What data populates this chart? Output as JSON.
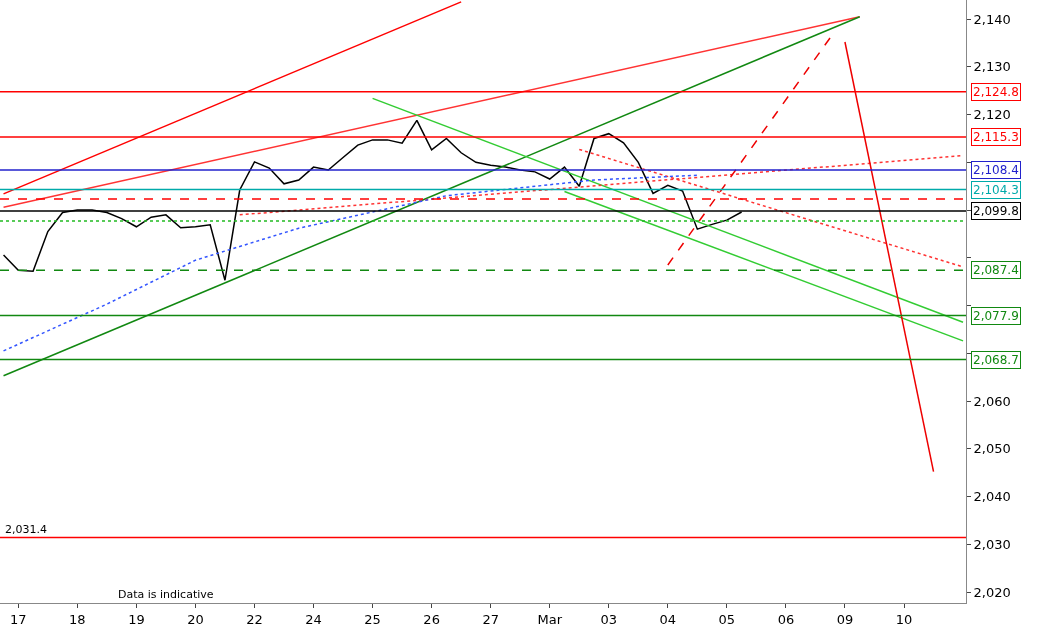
{
  "chart_data": {
    "type": "line",
    "annotations": [
      "Data is indicative"
    ],
    "categories": [
      null,
      "17",
      null,
      null,
      null,
      "18",
      null,
      null,
      null,
      "19",
      null,
      null,
      null,
      "20",
      null,
      null,
      null,
      "22",
      null,
      null,
      null,
      "24",
      null,
      null,
      null,
      "25",
      null,
      null,
      null,
      "26",
      null,
      null,
      null,
      "27",
      null,
      null,
      null,
      "Mar",
      null,
      null,
      null,
      "03",
      null,
      null,
      null,
      "04",
      null,
      null,
      null,
      "05",
      null,
      null,
      null,
      "06",
      null,
      null,
      null,
      "09",
      null,
      null,
      null,
      "10",
      null,
      null,
      null,
      null
    ],
    "ylim": [
      2017.7,
      2144
    ],
    "yticks": [
      {
        "value": 2020,
        "label": "2,020"
      },
      {
        "value": 2030,
        "label": "2,030"
      },
      {
        "value": 2040,
        "label": "2,040"
      },
      {
        "value": 2050,
        "label": "2,050"
      },
      {
        "value": 2060,
        "label": "2,060"
      },
      {
        "value": 2070,
        "label": null
      },
      {
        "value": 2080,
        "label": null
      },
      {
        "value": 2090,
        "label": null
      },
      {
        "value": 2100,
        "label": null
      },
      {
        "value": 2110,
        "label": null
      },
      {
        "value": 2120,
        "label": "2,120"
      },
      {
        "value": 2130,
        "label": "2,130"
      },
      {
        "value": 2140,
        "label": "2,140"
      }
    ],
    "grid": false,
    "marker": "none",
    "series": [
      {
        "color": "#000000",
        "values": [
          2090.6,
          2087.4,
          2087.2,
          2095.5,
          2099.5,
          2100,
          2100,
          2099.5,
          2098.2,
          2096.5,
          2098.5,
          2099,
          2096.3,
          2096.5,
          2096.9,
          2085.3,
          2104.2,
          2110.1,
          2108.8,
          2105.5,
          2106.3,
          2109,
          2108.4,
          2111,
          2113.6,
          2114.7,
          2114.7,
          2114,
          2118.8,
          2112.6,
          2115,
          2112,
          2110,
          2109.4,
          2109,
          2108.4,
          2108,
          2106.5,
          2109,
          2105,
          2115,
          2116,
          2114.1,
          2110,
          2103.5,
          2105.2,
          2104,
          2096,
          2097,
          2097.9,
          2099.6,
          null,
          null,
          null,
          null,
          null,
          null,
          null,
          null,
          null,
          null,
          null,
          null,
          null,
          null,
          null
        ]
      },
      {
        "color": "#ff0000",
        "values": [
          2103.4,
          null,
          null,
          null,
          null,
          null,
          null,
          null,
          null,
          null,
          null,
          null,
          null,
          null,
          null,
          null,
          null,
          null,
          null,
          null,
          null,
          null,
          null,
          null,
          null,
          null,
          null,
          null,
          null,
          null,
          null,
          2143.6,
          null,
          null,
          null,
          null,
          null,
          null,
          null,
          null,
          null,
          null,
          null,
          null,
          null,
          null,
          null,
          null,
          null,
          null,
          null,
          null,
          null,
          null,
          null,
          null,
          null,
          null,
          null,
          null,
          null,
          null,
          null,
          null,
          null,
          null
        ]
      },
      {
        "color": "#ff3333",
        "values": [
          2100.6,
          null,
          null,
          null,
          null,
          null,
          null,
          null,
          null,
          null,
          null,
          null,
          null,
          null,
          null,
          null,
          null,
          null,
          null,
          null,
          null,
          null,
          null,
          null,
          null,
          null,
          null,
          null,
          null,
          null,
          null,
          null,
          null,
          null,
          null,
          null,
          null,
          null,
          null,
          null,
          null,
          null,
          null,
          null,
          null,
          null,
          null,
          null,
          null,
          null,
          null,
          null,
          null,
          null,
          null,
          null,
          null,
          null,
          2140.5,
          null,
          null,
          null,
          null,
          null,
          null,
          null
        ]
      },
      {
        "color": "#118811",
        "values": [
          2065.3,
          null,
          null,
          null,
          null,
          null,
          null,
          null,
          null,
          null,
          null,
          null,
          null,
          null,
          null,
          null,
          null,
          null,
          null,
          null,
          null,
          null,
          null,
          null,
          null,
          null,
          null,
          null,
          null,
          null,
          null,
          null,
          null,
          null,
          null,
          null,
          null,
          null,
          null,
          null,
          null,
          null,
          null,
          null,
          null,
          null,
          null,
          null,
          null,
          null,
          null,
          null,
          null,
          null,
          null,
          null,
          null,
          null,
          2140.5,
          null,
          null,
          null,
          null,
          null,
          null,
          null
        ]
      },
      {
        "color": "#33cc33",
        "values": [
          null,
          null,
          null,
          null,
          null,
          null,
          null,
          null,
          null,
          null,
          null,
          null,
          null,
          null,
          null,
          null,
          null,
          null,
          null,
          null,
          null,
          null,
          null,
          null,
          null,
          2123.4,
          null,
          null,
          null,
          null,
          null,
          null,
          null,
          null,
          null,
          null,
          null,
          null,
          null,
          null,
          null,
          null,
          null,
          null,
          null,
          null,
          null,
          null,
          null,
          null,
          null,
          null,
          null,
          null,
          null,
          null,
          null,
          null,
          null,
          null,
          null,
          null,
          null,
          null,
          null,
          2076.5
        ]
      },
      {
        "color": "#33cc33",
        "values": [
          null,
          null,
          null,
          null,
          null,
          null,
          null,
          null,
          null,
          null,
          null,
          null,
          null,
          null,
          null,
          null,
          null,
          null,
          null,
          null,
          null,
          null,
          null,
          null,
          null,
          null,
          null,
          null,
          null,
          null,
          null,
          null,
          null,
          null,
          null,
          null,
          null,
          null,
          2103.9,
          null,
          null,
          null,
          null,
          null,
          null,
          null,
          null,
          null,
          null,
          null,
          null,
          null,
          null,
          null,
          null,
          null,
          null,
          null,
          null,
          null,
          null,
          null,
          null,
          null,
          null,
          2072.6
        ]
      },
      {
        "color": "#ff3333",
        "line_style": "dotted",
        "values": [
          null,
          null,
          null,
          null,
          null,
          null,
          null,
          null,
          null,
          null,
          null,
          null,
          null,
          null,
          null,
          null,
          null,
          null,
          null,
          null,
          null,
          null,
          null,
          null,
          null,
          null,
          null,
          null,
          null,
          null,
          null,
          null,
          null,
          null,
          null,
          null,
          null,
          null,
          null,
          2112.7,
          null,
          null,
          null,
          null,
          null,
          null,
          null,
          null,
          null,
          null,
          null,
          null,
          null,
          null,
          null,
          null,
          null,
          null,
          null,
          null,
          null,
          null,
          null,
          null,
          null,
          2088.1
        ]
      },
      {
        "color": "#ff3333",
        "line_style": "dotted",
        "values": [
          null,
          null,
          null,
          null,
          null,
          null,
          null,
          null,
          null,
          null,
          null,
          null,
          null,
          null,
          null,
          null,
          2099.0,
          null,
          null,
          null,
          null,
          null,
          null,
          null,
          null,
          null,
          null,
          null,
          null,
          null,
          null,
          null,
          null,
          null,
          null,
          null,
          null,
          null,
          null,
          null,
          null,
          null,
          null,
          null,
          null,
          null,
          null,
          null,
          null,
          null,
          null,
          null,
          null,
          null,
          null,
          null,
          null,
          null,
          null,
          null,
          null,
          null,
          null,
          null,
          null,
          2111.4
        ]
      },
      {
        "color": "#3355ff",
        "line_style": "dotted",
        "values": [
          2070.5,
          null,
          null,
          null,
          null,
          null,
          null,
          2080.3,
          null,
          null,
          null,
          null,
          null,
          2089.5,
          null,
          null,
          null,
          null,
          null,
          null,
          2096.2,
          null,
          null,
          null,
          null,
          null,
          null,
          null,
          null,
          null,
          2103,
          null,
          null,
          null,
          null,
          null,
          null,
          null,
          null,
          null,
          2106.3,
          null,
          null,
          null,
          null,
          null,
          null,
          2107.3,
          null,
          null,
          null,
          null,
          null,
          null,
          null,
          null,
          null,
          null,
          null,
          null,
          null,
          null,
          null,
          null,
          null,
          null
        ]
      },
      {
        "color": "#ee0000",
        "line_style": "dashed",
        "values": [
          null,
          null,
          null,
          null,
          null,
          null,
          null,
          null,
          null,
          null,
          null,
          null,
          null,
          null,
          null,
          null,
          null,
          null,
          null,
          null,
          null,
          null,
          null,
          null,
          null,
          null,
          null,
          null,
          null,
          null,
          null,
          null,
          null,
          null,
          null,
          null,
          null,
          null,
          null,
          null,
          null,
          null,
          null,
          null,
          null,
          2088.5,
          null,
          null,
          null,
          null,
          null,
          null,
          null,
          null,
          null,
          null,
          2136.1,
          null,
          null,
          null,
          null,
          null,
          null,
          null,
          null,
          null
        ]
      },
      {
        "color": "#ee0000",
        "values": [
          null,
          null,
          null,
          null,
          null,
          null,
          null,
          null,
          null,
          null,
          null,
          null,
          null,
          null,
          null,
          null,
          null,
          null,
          null,
          null,
          null,
          null,
          null,
          null,
          null,
          null,
          null,
          null,
          null,
          null,
          null,
          null,
          null,
          null,
          null,
          null,
          null,
          null,
          null,
          null,
          null,
          null,
          null,
          null,
          null,
          null,
          null,
          null,
          null,
          null,
          null,
          null,
          null,
          null,
          null,
          null,
          null,
          2135.2,
          null,
          null,
          null,
          null,
          null,
          2045.2,
          null,
          null
        ]
      }
    ],
    "ref_lines": [
      {
        "axis": "y",
        "value": 2124.8,
        "label": "2,124.8",
        "color": "#ff0000"
      },
      {
        "axis": "y",
        "value": 2115.3,
        "label": "2,115.3",
        "color": "#ff0000"
      },
      {
        "axis": "y",
        "value": 2108.4,
        "label": "2,108.4",
        "color": "#2222cc"
      },
      {
        "axis": "y",
        "value": 2104.3,
        "label": "2,104.3",
        "color": "#00aaaa"
      },
      {
        "axis": "y",
        "value": 2102.3,
        "color": "#ff0000",
        "line_style": "dashed"
      },
      {
        "axis": "y",
        "value": 2099.8,
        "label": "2,099.8",
        "color": "#000000"
      },
      {
        "axis": "y",
        "value": 2097.7,
        "color": "#22bb22",
        "line_style": "dotted"
      },
      {
        "axis": "y",
        "value": 2087.4,
        "label": "2,087.4",
        "color": "#118811",
        "line_style": "dashed"
      },
      {
        "axis": "y",
        "value": 2077.9,
        "label": "2,077.9",
        "color": "#118811"
      },
      {
        "axis": "y",
        "value": 2068.7,
        "label": "2,068.7",
        "color": "#118811"
      },
      {
        "axis": "y",
        "value": 2031.4,
        "label": "2,031.4",
        "color": "#ff0000"
      }
    ]
  }
}
